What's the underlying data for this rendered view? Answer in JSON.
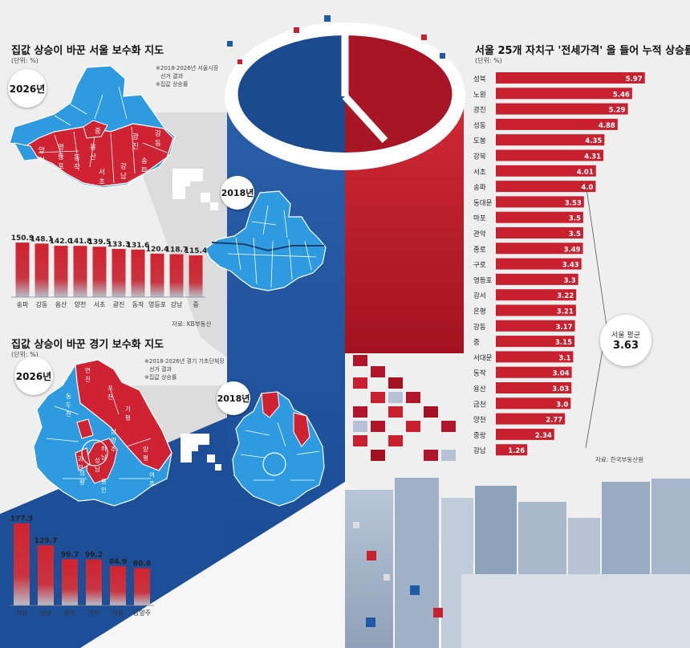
{
  "colors": {
    "red": "#c8202f",
    "blue": "#1f5aa6",
    "mapBlue": "#2e9be0",
    "mapRed": "#cf2232"
  },
  "seoul_map": {
    "title": "집값 상승이 바꾼 서울 보수화 지도",
    "unit": "(단위: %)",
    "legend_1": "※2018·2026년 서울시장",
    "legend_2": "선거 결과",
    "legend_3": "※집값 상승률",
    "year_2026": "2026년",
    "year_2018": "2018년",
    "district_labels": [
      "중",
      "광진",
      "강동",
      "양천",
      "영등포",
      "용산",
      "동작",
      "서초",
      "강남",
      "송파"
    ]
  },
  "gyeonggi_map": {
    "title": "집값 상승이 바꾼 경기 보수화 지도",
    "legend_1": "※2018·2026년 경기 기초단체장",
    "legend_2": "선거 결과",
    "legend_3": "※집값 상승률",
    "year_2026": "2026년",
    "year_2018": "2018년",
    "district_labels": [
      "연천",
      "포천",
      "동두천",
      "가평",
      "양평",
      "여주",
      "하남",
      "성남",
      "과천",
      "의왕",
      "용인",
      "남양주"
    ]
  },
  "source_kb": "자료: KB부동산",
  "source_reb": "자료: 한국부동산원",
  "avg": {
    "label": "서울 평균",
    "value": "3.63"
  },
  "chart_data": [
    {
      "type": "bar",
      "title": "",
      "categories": [
        "송파",
        "강동",
        "용산",
        "양천",
        "서초",
        "광진",
        "동작",
        "영등포",
        "강남",
        "중"
      ],
      "values": [
        150.9,
        148.1,
        142.0,
        141.8,
        139.5,
        133.3,
        131.6,
        120.4,
        118.7,
        115.4
      ],
      "value_labels": [
        "150.9",
        "148.1",
        "142.0",
        "141.8",
        "139.5",
        "133.3",
        "131.6",
        "120.4",
        "118.7",
        "115.4"
      ],
      "ylim": [
        0,
        160
      ],
      "grid": false,
      "bar_color": "#c8202f"
    },
    {
      "type": "bar",
      "title": "",
      "categories": [
        "하남",
        "성남",
        "용인",
        "과천",
        "의왕",
        "남양주"
      ],
      "values": [
        177.3,
        129.7,
        99.7,
        99.2,
        84.9,
        80.6
      ],
      "value_labels": [
        "177.3",
        "129.7",
        "99.7",
        "99.2",
        "84.9",
        "80.6"
      ],
      "ylim": [
        0,
        180
      ],
      "grid": false,
      "bar_color": "#c8202f"
    },
    {
      "type": "bar",
      "orientation": "horizontal",
      "title": "서울 25개 자치구 '전세가격' 올 들어 누적 상승률",
      "unit": "(단위: %)",
      "categories": [
        "성북",
        "노원",
        "광진",
        "성동",
        "도봉",
        "강북",
        "서초",
        "송파",
        "동대문",
        "마포",
        "관악",
        "종로",
        "구로",
        "영등포",
        "강서",
        "은평",
        "강동",
        "중",
        "서대문",
        "동작",
        "용산",
        "금천",
        "양천",
        "중랑",
        "강남"
      ],
      "values": [
        5.97,
        5.46,
        5.29,
        4.88,
        4.35,
        4.31,
        4.01,
        4.0,
        3.53,
        3.5,
        3.5,
        3.49,
        3.43,
        3.3,
        3.22,
        3.21,
        3.17,
        3.15,
        3.1,
        3.04,
        3.03,
        3.0,
        2.77,
        2.34,
        1.26
      ],
      "value_labels": [
        "5.97",
        "5.46",
        "5.29",
        "4.88",
        "4.35",
        "4.31",
        "4.01",
        "4.0",
        "3.53",
        "3.5",
        "3.5",
        "3.49",
        "3.43",
        "3.3",
        "3.22",
        "3.21",
        "3.17",
        "3.15",
        "3.1",
        "3.04",
        "3.03",
        "3.0",
        "2.77",
        "2.34",
        "1.26"
      ],
      "xlim": [
        0,
        6.3
      ],
      "reference_line": {
        "label": "서울 평균",
        "value": 3.63
      },
      "grid": false,
      "bar_color": "#c8202f"
    }
  ]
}
